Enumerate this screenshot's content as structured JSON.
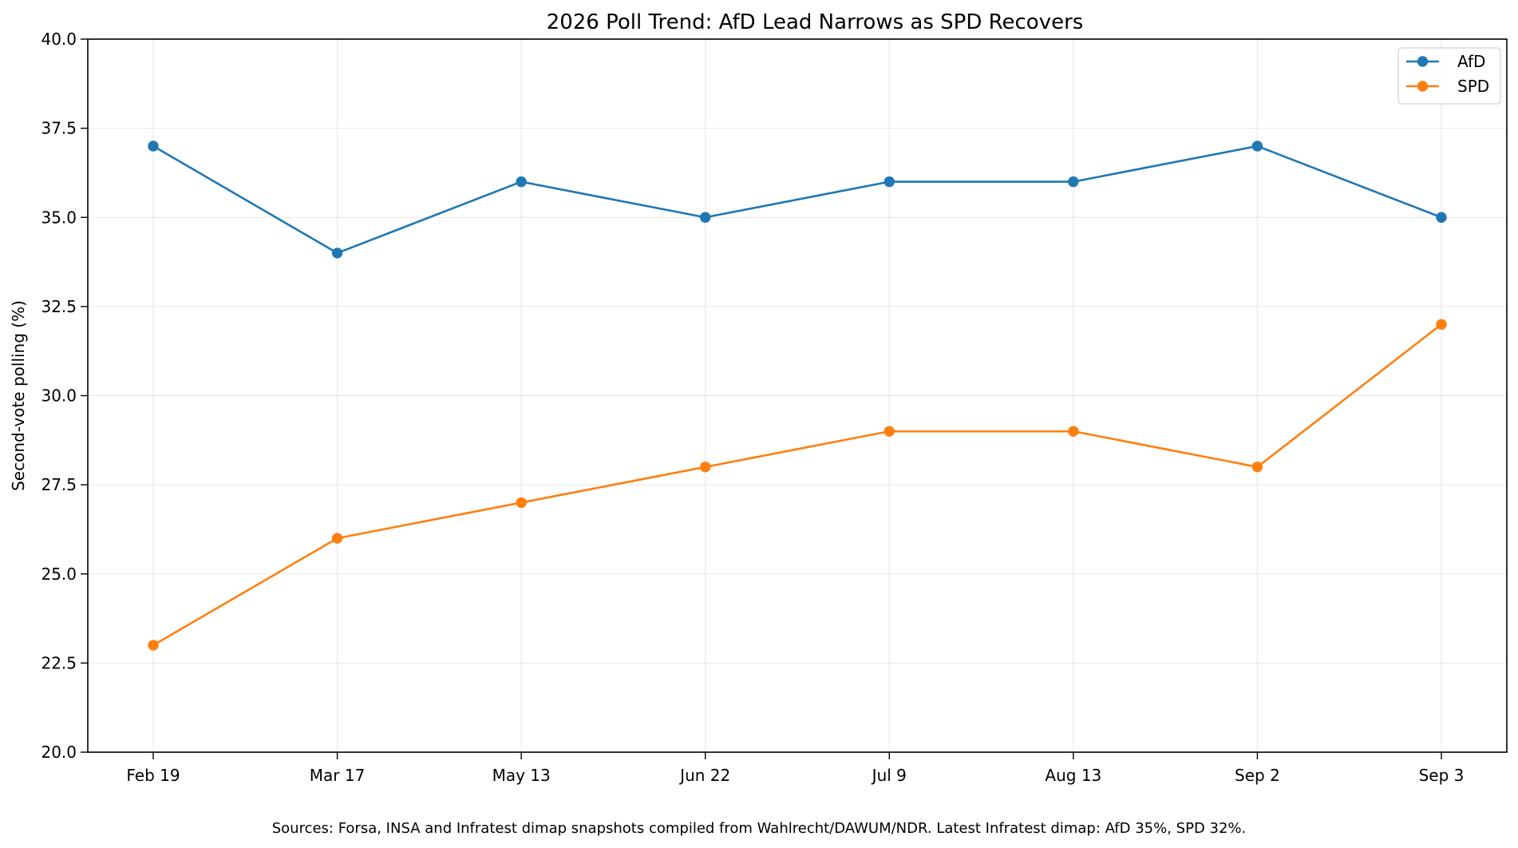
{
  "chart_data": {
    "type": "line",
    "title": "2026 Poll Trend: AfD Lead Narrows as SPD Recovers",
    "xlabel": "",
    "ylabel": "Second-vote polling (%)",
    "categories": [
      "Feb 19",
      "Mar 17",
      "May 13",
      "Jun 22",
      "Jul 9",
      "Aug 13",
      "Sep 2",
      "Sep 3"
    ],
    "ylim": [
      20,
      40
    ],
    "yticks": [
      "20.0",
      "22.5",
      "25.0",
      "27.5",
      "30.0",
      "32.5",
      "35.0",
      "37.5",
      "40.0"
    ],
    "grid": true,
    "legend_position": "top-right",
    "series": [
      {
        "name": "AfD",
        "color": "#1f77b4",
        "marker": "circle",
        "values": [
          37,
          34,
          36,
          35,
          36,
          36,
          37,
          35
        ]
      },
      {
        "name": "SPD",
        "color": "#ff7f0e",
        "marker": "circle",
        "values": [
          23,
          26,
          27,
          28,
          29,
          29,
          28,
          32
        ]
      }
    ],
    "footnote": "Sources: Forsa, INSA and Infratest dimap snapshots compiled from Wahlrecht/DAWUM/NDR. Latest Infratest dimap: AfD 35%, SPD 32%."
  }
}
